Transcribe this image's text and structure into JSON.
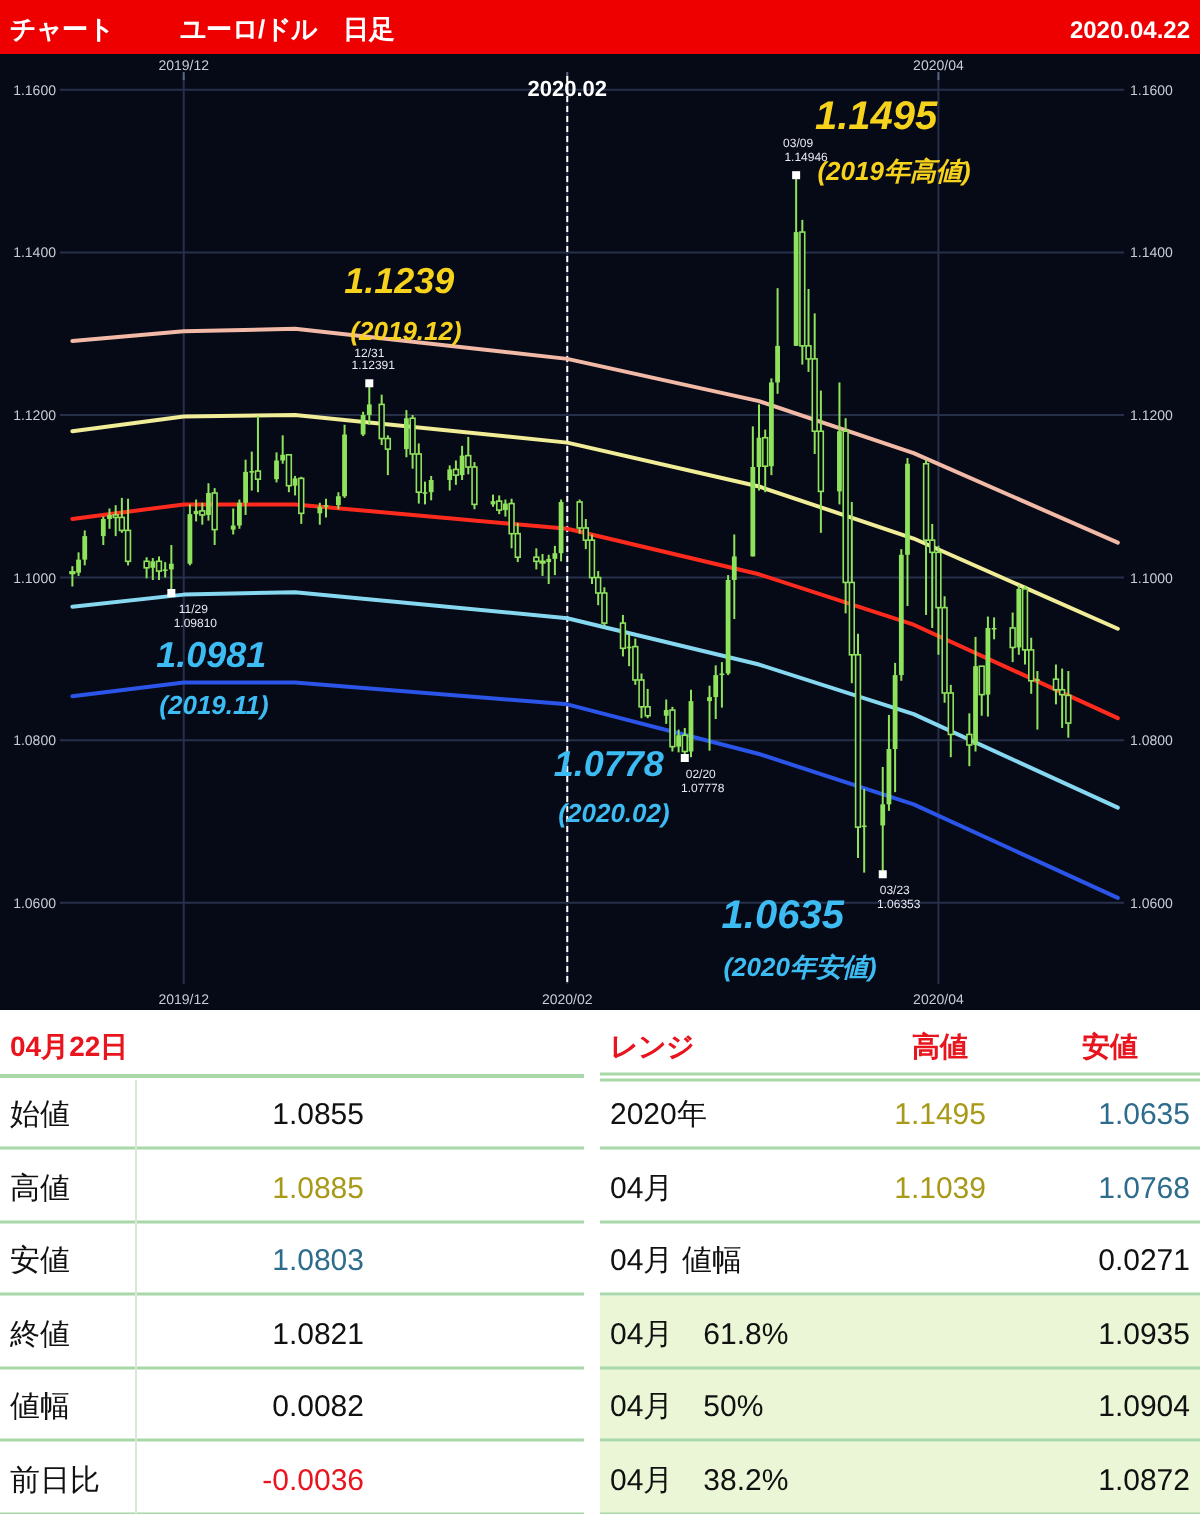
{
  "chart_data": [
    {
      "type": "candlestick",
      "title": "チャート",
      "subtitle": "ユーロ/ドル　日足",
      "xlim": [
        "2019-11-11",
        "2020-05-01"
      ],
      "x2lim": [
        "2019-11-11",
        "2020-05-01"
      ],
      "xticks": [
        {
          "value": "2019-12-01",
          "label": "2019/12"
        },
        {
          "value": "2020-02-01",
          "label": "2020/02"
        },
        {
          "value": "2020-04-01",
          "label": "2020/04"
        }
      ],
      "x2ticks": [
        {
          "value": "2019-12-01",
          "label": "2019/12"
        },
        {
          "value": "2020-02-01",
          "label": null
        },
        {
          "value": "2020-04-01",
          "label": "2020/04"
        }
      ],
      "ylim": [
        1.05,
        1.1617
      ],
      "y2lim": [
        1.05,
        1.1617
      ],
      "yticks": [
        {
          "value": 1.06,
          "label": "1.0600"
        },
        {
          "value": 1.08,
          "label": "1.0800"
        },
        {
          "value": 1.1,
          "label": "1.1000"
        },
        {
          "value": 1.12,
          "label": "1.1200"
        },
        {
          "value": 1.14,
          "label": "1.1400"
        },
        {
          "value": 1.16,
          "label": "1.1600"
        }
      ],
      "y2ticks": [
        {
          "value": 1.06,
          "label": "1.0600"
        },
        {
          "value": 1.08,
          "label": "1.0800"
        },
        {
          "value": 1.1,
          "label": "1.1000"
        },
        {
          "value": 1.12,
          "label": "1.1200"
        },
        {
          "value": 1.14,
          "label": "1.1400"
        },
        {
          "value": 1.16,
          "label": "1.1600"
        }
      ],
      "grid": true,
      "ref_lines": [
        {
          "axis": "x",
          "value": "2020-02-01",
          "label": "2020.02",
          "color": "#ffffff",
          "line_style": "dashed"
        }
      ],
      "series": [
        {
          "type": "line",
          "color": "#f2b9a6",
          "x": [
            "2019-11-13",
            "2019-12-01",
            "2019-12-19",
            "2020-02-01",
            "2020-03-03",
            "2020-03-28",
            "2020-04-30"
          ],
          "values": [
            1.1291,
            1.1303,
            1.1306,
            1.1269,
            1.1217,
            1.1153,
            1.1043
          ]
        },
        {
          "type": "line",
          "color": "#f0ec98",
          "x": [
            "2019-11-13",
            "2019-12-01",
            "2019-12-19",
            "2020-02-01",
            "2020-03-03",
            "2020-03-28",
            "2020-04-30"
          ],
          "values": [
            1.118,
            1.1198,
            1.12,
            1.1166,
            1.1112,
            1.1048,
            1.0937
          ]
        },
        {
          "type": "line",
          "color": "#ff2a1e",
          "x": [
            "2019-11-13",
            "2019-12-01",
            "2019-12-19",
            "2020-02-01",
            "2020-03-03",
            "2020-03-28",
            "2020-04-30"
          ],
          "values": [
            1.1072,
            1.109,
            1.109,
            1.106,
            1.1004,
            1.0942,
            1.0827
          ]
        },
        {
          "type": "line",
          "color": "#86d8f0",
          "x": [
            "2019-11-13",
            "2019-12-01",
            "2019-12-19",
            "2020-02-01",
            "2020-03-03",
            "2020-03-28",
            "2020-04-30"
          ],
          "values": [
            1.0964,
            1.0979,
            1.0982,
            1.095,
            1.0893,
            1.0832,
            1.0717
          ]
        },
        {
          "type": "line",
          "color": "#2a55e8",
          "x": [
            "2019-11-13",
            "2019-12-01",
            "2019-12-19",
            "2020-02-01",
            "2020-03-03",
            "2020-03-28",
            "2020-04-30"
          ],
          "values": [
            1.0854,
            1.0871,
            1.0871,
            1.0844,
            1.0783,
            1.0721,
            1.0606
          ]
        },
        {
          "type": "candlestick",
          "color": "#8fe25c",
          "x": [
            "2019-11-13",
            "2019-11-14",
            "2019-11-15",
            "2019-11-18",
            "2019-11-19",
            "2019-11-20",
            "2019-11-21",
            "2019-11-22",
            "2019-11-25",
            "2019-11-26",
            "2019-11-27",
            "2019-11-28",
            "2019-11-29",
            "2019-12-02",
            "2019-12-03",
            "2019-12-04",
            "2019-12-05",
            "2019-12-06",
            "2019-12-09",
            "2019-12-10",
            "2019-12-11",
            "2019-12-12",
            "2019-12-13",
            "2019-12-16",
            "2019-12-17",
            "2019-12-18",
            "2019-12-19",
            "2019-12-20",
            "2019-12-23",
            "2019-12-24",
            "2019-12-26",
            "2019-12-27",
            "2019-12-30",
            "2019-12-31",
            "2020-01-02",
            "2020-01-03",
            "2020-01-06",
            "2020-01-07",
            "2020-01-08",
            "2020-01-09",
            "2020-01-10",
            "2020-01-13",
            "2020-01-14",
            "2020-01-15",
            "2020-01-16",
            "2020-01-17",
            "2020-01-20",
            "2020-01-21",
            "2020-01-22",
            "2020-01-23",
            "2020-01-24",
            "2020-01-27",
            "2020-01-28",
            "2020-01-29",
            "2020-01-30",
            "2020-01-31",
            "2020-02-03",
            "2020-02-04",
            "2020-02-05",
            "2020-02-06",
            "2020-02-07",
            "2020-02-10",
            "2020-02-11",
            "2020-02-12",
            "2020-02-13",
            "2020-02-14",
            "2020-02-17",
            "2020-02-18",
            "2020-02-19",
            "2020-02-20",
            "2020-02-21",
            "2020-02-24",
            "2020-02-25",
            "2020-02-26",
            "2020-02-27",
            "2020-02-28",
            "2020-03-02",
            "2020-03-03",
            "2020-03-04",
            "2020-03-05",
            "2020-03-06",
            "2020-03-09",
            "2020-03-10",
            "2020-03-11",
            "2020-03-12",
            "2020-03-13",
            "2020-03-16",
            "2020-03-17",
            "2020-03-18",
            "2020-03-19",
            "2020-03-20",
            "2020-03-23",
            "2020-03-24",
            "2020-03-25",
            "2020-03-26",
            "2020-03-27",
            "2020-03-30",
            "2020-03-31",
            "2020-04-01",
            "2020-04-02",
            "2020-04-03",
            "2020-04-06",
            "2020-04-07",
            "2020-04-08",
            "2020-04-09",
            "2020-04-10",
            "2020-04-13",
            "2020-04-14",
            "2020-04-15",
            "2020-04-16",
            "2020-04-17",
            "2020-04-20",
            "2020-04-21",
            "2020-04-22"
          ],
          "ohlc": [
            [
              1.1007,
              1.1014,
              1.0989,
              1.1006
            ],
            [
              1.1006,
              1.1031,
              1.1002,
              1.1022
            ],
            [
              1.1022,
              1.1058,
              1.1015,
              1.1051
            ],
            [
              1.1051,
              1.1075,
              1.104,
              1.1072
            ],
            [
              1.1072,
              1.1085,
              1.106,
              1.1077
            ],
            [
              1.1077,
              1.1089,
              1.1051,
              1.1074
            ],
            [
              1.1074,
              1.1098,
              1.1055,
              1.1058
            ],
            [
              1.1058,
              1.1097,
              1.1015,
              1.102
            ],
            [
              1.102,
              1.1025,
              1.0999,
              1.1012
            ],
            [
              1.1012,
              1.1024,
              1.0997,
              1.102
            ],
            [
              1.102,
              1.1026,
              1.0997,
              1.1008
            ],
            [
              1.1008,
              1.1019,
              1.1,
              1.101
            ],
            [
              1.101,
              1.104,
              1.0981,
              1.1017
            ],
            [
              1.1017,
              1.109,
              1.1015,
              1.1078
            ],
            [
              1.1078,
              1.1096,
              1.1069,
              1.1082
            ],
            [
              1.1082,
              1.1092,
              1.1065,
              1.1077
            ],
            [
              1.1077,
              1.1116,
              1.107,
              1.1104
            ],
            [
              1.1104,
              1.111,
              1.104,
              1.1059
            ],
            [
              1.1059,
              1.1085,
              1.1053,
              1.1064
            ],
            [
              1.1064,
              1.1096,
              1.106,
              1.1092
            ],
            [
              1.1092,
              1.1145,
              1.1077,
              1.113
            ],
            [
              1.113,
              1.1155,
              1.1107,
              1.1131
            ],
            [
              1.1131,
              1.1199,
              1.1105,
              1.1121
            ],
            [
              1.1121,
              1.1154,
              1.1117,
              1.1144
            ],
            [
              1.1144,
              1.1175,
              1.114,
              1.1151
            ],
            [
              1.1151,
              1.1152,
              1.1105,
              1.1113
            ],
            [
              1.1113,
              1.1125,
              1.1101,
              1.1122
            ],
            [
              1.1122,
              1.1124,
              1.1066,
              1.1079
            ],
            [
              1.1079,
              1.1092,
              1.1065,
              1.1087
            ],
            [
              1.1087,
              1.1097,
              1.1074,
              1.1089
            ],
            [
              1.1089,
              1.1105,
              1.1084,
              1.11
            ],
            [
              1.11,
              1.1188,
              1.1098,
              1.1176
            ],
            [
              1.1176,
              1.1204,
              1.1174,
              1.12
            ],
            [
              1.12,
              1.1239,
              1.1188,
              1.1213
            ],
            [
              1.1213,
              1.1225,
              1.1163,
              1.1171
            ],
            [
              1.1171,
              1.1175,
              1.1126,
              1.1158
            ],
            [
              1.1158,
              1.1206,
              1.1148,
              1.1196
            ],
            [
              1.1196,
              1.12,
              1.1134,
              1.1152
            ],
            [
              1.1152,
              1.1165,
              1.1091,
              1.1105
            ],
            [
              1.1105,
              1.1118,
              1.109,
              1.1105
            ],
            [
              1.1105,
              1.1125,
              1.1095,
              1.112
            ],
            [
              1.112,
              1.1138,
              1.1107,
              1.1133
            ],
            [
              1.1133,
              1.1144,
              1.1114,
              1.1126
            ],
            [
              1.1126,
              1.1162,
              1.112,
              1.115
            ],
            [
              1.115,
              1.1173,
              1.1127,
              1.1136
            ],
            [
              1.1136,
              1.1142,
              1.1084,
              1.109
            ],
            [
              1.109,
              1.1102,
              1.1087,
              1.1094
            ],
            [
              1.1094,
              1.1101,
              1.1078,
              1.1083
            ],
            [
              1.1083,
              1.1096,
              1.1075,
              1.1091
            ],
            [
              1.1091,
              1.1097,
              1.1036,
              1.1054
            ],
            [
              1.1054,
              1.1067,
              1.1019,
              1.1025
            ],
            [
              1.1025,
              1.1036,
              1.101,
              1.102
            ],
            [
              1.102,
              1.1029,
              1.1002,
              1.1019
            ],
            [
              1.1019,
              1.1028,
              1.0992,
              1.1023
            ],
            [
              1.1023,
              1.1039,
              1.1003,
              1.103
            ],
            [
              1.103,
              1.1096,
              1.102,
              1.1093
            ],
            [
              1.1093,
              1.1096,
              1.1054,
              1.1061
            ],
            [
              1.1061,
              1.1072,
              1.1035,
              1.1046
            ],
            [
              1.1046,
              1.1053,
              1.0992,
              1.1
            ],
            [
              1.1,
              1.1008,
              1.0966,
              1.0981
            ],
            [
              1.0981,
              1.0988,
              1.094,
              1.0944
            ],
            [
              1.0944,
              1.0954,
              1.0903,
              1.0913
            ],
            [
              1.0913,
              1.093,
              1.0891,
              1.0915
            ],
            [
              1.0915,
              1.0925,
              1.0868,
              1.0874
            ],
            [
              1.0874,
              1.0882,
              1.0827,
              1.0841
            ],
            [
              1.0841,
              1.0863,
              1.0827,
              1.083
            ],
            [
              1.083,
              1.085,
              1.082,
              1.0837
            ],
            [
              1.0837,
              1.0841,
              1.0786,
              1.0792
            ],
            [
              1.0792,
              1.0813,
              1.0785,
              1.0806
            ],
            [
              1.0806,
              1.0815,
              1.0778,
              1.0786
            ],
            [
              1.0786,
              1.0862,
              1.0779,
              1.0848
            ],
            [
              1.0848,
              1.0867,
              1.0787,
              1.0853
            ],
            [
              1.0853,
              1.0892,
              1.0826,
              1.088
            ],
            [
              1.088,
              1.0896,
              1.084,
              1.0882
            ],
            [
              1.0882,
              1.1003,
              1.088,
              1.0997
            ],
            [
              1.0997,
              1.1053,
              1.0949,
              1.1026
            ],
            [
              1.1026,
              1.1186,
              1.1026,
              1.1136
            ],
            [
              1.1136,
              1.1213,
              1.1107,
              1.1172
            ],
            [
              1.1172,
              1.1182,
              1.1105,
              1.1137
            ],
            [
              1.1137,
              1.1245,
              1.1126,
              1.124
            ],
            [
              1.124,
              1.1356,
              1.1226,
              1.1285
            ],
            [
              1.1285,
              1.1495,
              1.1285,
              1.1425
            ],
            [
              1.1425,
              1.144,
              1.1262,
              1.1285
            ],
            [
              1.1285,
              1.1355,
              1.1253,
              1.1269
            ],
            [
              1.1269,
              1.1325,
              1.1152,
              1.118
            ],
            [
              1.118,
              1.123,
              1.1055,
              1.1106
            ],
            [
              1.1106,
              1.124,
              1.109,
              1.118
            ],
            [
              1.118,
              1.1196,
              1.0956,
              1.0994
            ],
            [
              1.0994,
              1.1093,
              1.087,
              1.0905
            ],
            [
              1.0905,
              1.0931,
              1.0655,
              1.0693
            ],
            [
              1.0693,
              1.074,
              1.0637,
              1.0695
            ],
            [
              1.0695,
              1.0767,
              1.0635,
              1.0721
            ],
            [
              1.0721,
              1.0831,
              1.0713,
              1.0789
            ],
            [
              1.0789,
              1.0895,
              1.0736,
              1.088
            ],
            [
              1.088,
              1.1035,
              1.0873,
              1.1028
            ],
            [
              1.1028,
              1.1147,
              1.0965,
              1.114
            ],
            [
              1.114,
              1.1145,
              1.0954,
              1.1046
            ],
            [
              1.1046,
              1.1066,
              1.0938,
              1.1031
            ],
            [
              1.1031,
              1.1039,
              1.0905,
              1.0963
            ],
            [
              1.0963,
              1.0977,
              1.0846,
              1.0858
            ],
            [
              1.0858,
              1.0868,
              1.0779,
              1.0807
            ],
            [
              1.0807,
              1.0833,
              1.0768,
              1.0794
            ],
            [
              1.0794,
              1.0927,
              1.0786,
              1.0891
            ],
            [
              1.0891,
              1.0891,
              1.083,
              1.0856
            ],
            [
              1.0856,
              1.0952,
              1.0829,
              1.0938
            ],
            [
              1.0938,
              1.0951,
              1.0924,
              1.0938
            ],
            [
              1.0938,
              1.0957,
              1.0896,
              1.0914
            ],
            [
              1.0914,
              1.0991,
              1.0905,
              1.0986
            ],
            [
              1.0986,
              1.099,
              1.0893,
              1.0911
            ],
            [
              1.0911,
              1.0926,
              1.0857,
              1.0873
            ],
            [
              1.0873,
              1.0885,
              1.0813,
              1.0875
            ],
            [
              1.0875,
              1.0893,
              1.0844,
              1.0862
            ],
            [
              1.0862,
              1.0888,
              1.0815,
              1.0856
            ],
            [
              1.0855,
              1.0885,
              1.0803,
              1.0821
            ]
          ]
        }
      ],
      "annotations": [
        "2020.04.22",
        {
          "text": "1.1239",
          "x": "2019-12-31",
          "y": 1.1239
        },
        "(2019.12)",
        {
          "text": "12/31",
          "x": "2019-12-31",
          "y": 1.1239
        },
        {
          "text": "1.12391",
          "x": "2019-12-31",
          "y": 1.1239
        },
        {
          "text": "1.1495",
          "x": "2020-03-09",
          "y": 1.1495
        },
        "(2019年高値)",
        {
          "text": "03/09",
          "x": "2020-03-09",
          "y": 1.1495
        },
        {
          "text": "1.14946",
          "x": "2020-03-09",
          "y": 1.1495
        },
        {
          "text": "1.0981",
          "x": "2019-11-29",
          "y": 1.0981
        },
        "(2019.11)",
        {
          "text": "11/29",
          "x": "2019-11-29",
          "y": 1.0981
        },
        {
          "text": "1.09810",
          "x": "2019-11-29",
          "y": 1.0981
        },
        {
          "text": "1.0778",
          "x": "2020-02-20",
          "y": 1.0778
        },
        "(2020.02)",
        {
          "text": "02/20",
          "x": "2020-02-20",
          "y": 1.0778
        },
        {
          "text": "1.07778",
          "x": "2020-02-20",
          "y": 1.0778
        },
        {
          "text": "1.0635",
          "x": "2020-03-23",
          "y": 1.0635
        },
        "(2020年安値)",
        {
          "text": "03/23",
          "x": "2020-03-23",
          "y": 1.0635
        },
        {
          "text": "1.06353",
          "x": "2020-03-23",
          "y": 1.0635
        }
      ]
    },
    {
      "type": "other",
      "title": "04月22日",
      "annotations": [
        "レンジ",
        "高値",
        "安値",
        "始値",
        "1.0855",
        "高値",
        "1.0885",
        "安値",
        "1.0803",
        "終値",
        "1.0821",
        "値幅",
        "0.0082",
        "前日比",
        "-0.0036",
        "2020年",
        "1.1495",
        "1.0635",
        "04月",
        "1.1039",
        "1.0768",
        "04月 値幅",
        "0.0271",
        "04月　61.8%",
        "1.0935",
        "04月　50%",
        "1.0904",
        "04月　38.2%",
        "1.0872"
      ]
    }
  ]
}
